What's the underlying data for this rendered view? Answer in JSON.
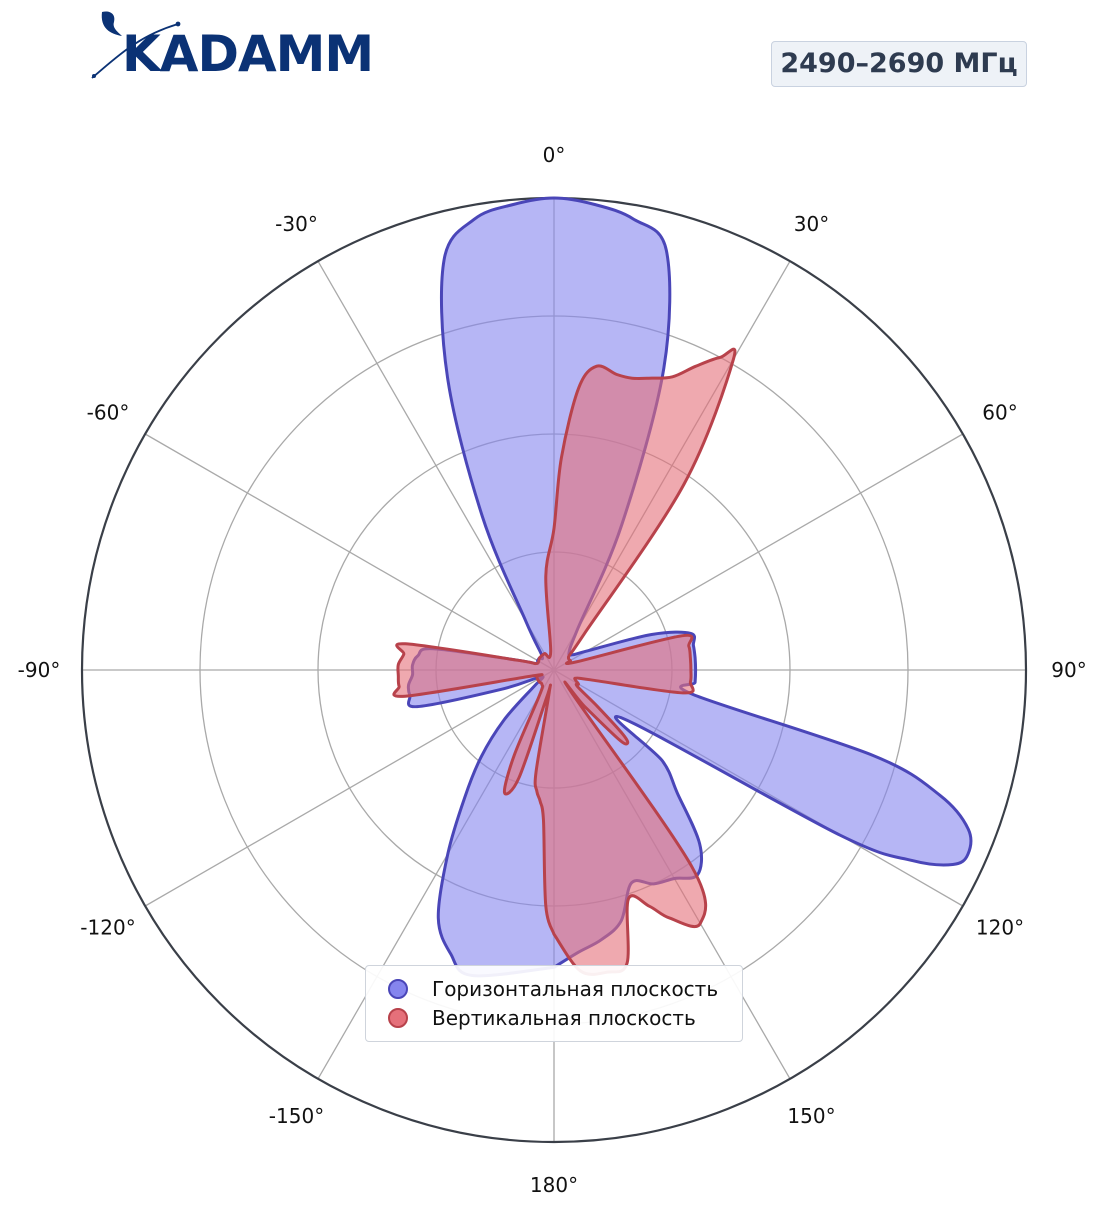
{
  "header": {
    "logo_text": "KADAMM",
    "band_label": "2490–2690 МГц"
  },
  "colors": {
    "horizontal_fill": "#8585ee",
    "horizontal_stroke": "#4a46b8",
    "vertical_fill": "#e5707a",
    "vertical_stroke": "#b8424b",
    "logo": "#0b3275"
  },
  "chart_data": {
    "type": "polar-area",
    "theta_direction": "clockwise",
    "theta_zero": "top",
    "theta_ticks": [
      0,
      30,
      60,
      90,
      120,
      150,
      180,
      -150,
      -120,
      -90,
      -60,
      -30
    ],
    "theta_tick_labels": [
      "0°",
      "30°",
      "60°",
      "90°",
      "120°",
      "150°",
      "180°",
      "-150°",
      "-120°",
      "-90°",
      "-60°",
      "-30°"
    ],
    "r_range": [
      0,
      1
    ],
    "r_grid": [
      0.25,
      0.5,
      0.75,
      1.0
    ],
    "grid": true,
    "legend_position": "bottom-center",
    "series": [
      {
        "name": "Горизонтальная плоскость",
        "angles": [
          -180,
          -165,
          -160,
          -155,
          -150,
          -145,
          -140,
          -135,
          -130,
          -125,
          -120,
          -115,
          -110,
          -105,
          -100,
          -96,
          -92,
          -88,
          -84,
          -80,
          -75,
          -70,
          -60,
          -50,
          -40,
          -30,
          -25,
          -20,
          -15,
          -10,
          -5,
          0,
          5,
          10,
          15,
          20,
          25,
          30,
          40,
          50,
          60,
          70,
          75,
          80,
          85,
          90,
          95,
          100,
          105,
          108,
          111,
          114,
          116,
          118,
          120,
          125,
          130,
          135,
          140,
          145,
          150,
          155,
          160,
          165,
          170,
          175,
          180
        ],
        "values": [
          0.63,
          0.67,
          0.64,
          0.58,
          0.45,
          0.33,
          0.24,
          0.15,
          0.06,
          0.03,
          0.03,
          0.04,
          0.12,
          0.3,
          0.31,
          0.31,
          0.3,
          0.3,
          0.29,
          0.26,
          0.08,
          0.04,
          0.04,
          0.04,
          0.04,
          0.12,
          0.36,
          0.66,
          0.9,
          0.97,
          0.99,
          1.0,
          0.99,
          0.97,
          0.92,
          0.68,
          0.34,
          0.1,
          0.05,
          0.05,
          0.08,
          0.22,
          0.3,
          0.3,
          0.3,
          0.3,
          0.3,
          0.3,
          0.7,
          0.86,
          0.94,
          0.96,
          0.94,
          0.86,
          0.7,
          0.18,
          0.3,
          0.37,
          0.48,
          0.53,
          0.51,
          0.5,
          0.48,
          0.55,
          0.58,
          0.6,
          0.63
        ]
      },
      {
        "name": "Вертикальная плоскость",
        "angles": [
          -180,
          -178,
          -176,
          -174,
          -172,
          -170,
          -168,
          -165,
          -162,
          -158,
          -155,
          -150,
          -140,
          -130,
          -120,
          -110,
          -105,
          -100,
          -96,
          -92,
          -88,
          -84,
          -80,
          -75,
          -70,
          -50,
          -30,
          -10,
          -5,
          0,
          2,
          5,
          8,
          12,
          15,
          18,
          22,
          25,
          28,
          30,
          35,
          40,
          45,
          50,
          60,
          70,
          75,
          80,
          85,
          90,
          95,
          100,
          105,
          110,
          115,
          120,
          125,
          130,
          133,
          135,
          137,
          140,
          142,
          145,
          150,
          155,
          158,
          162,
          166,
          170,
          175,
          180
        ],
        "values": [
          0.56,
          0.5,
          0.32,
          0.28,
          0.26,
          0.22,
          0.05,
          0.06,
          0.24,
          0.28,
          0.2,
          0.06,
          0.04,
          0.04,
          0.04,
          0.04,
          0.05,
          0.32,
          0.33,
          0.33,
          0.33,
          0.32,
          0.32,
          0.08,
          0.04,
          0.04,
          0.04,
          0.04,
          0.2,
          0.3,
          0.45,
          0.6,
          0.65,
          0.64,
          0.64,
          0.65,
          0.67,
          0.71,
          0.75,
          0.76,
          0.48,
          0.1,
          0.05,
          0.04,
          0.04,
          0.05,
          0.28,
          0.29,
          0.29,
          0.29,
          0.29,
          0.28,
          0.08,
          0.05,
          0.05,
          0.06,
          0.06,
          0.12,
          0.2,
          0.22,
          0.2,
          0.1,
          0.06,
          0.51,
          0.62,
          0.58,
          0.54,
          0.51,
          0.64,
          0.65,
          0.64,
          0.56
        ]
      }
    ]
  }
}
